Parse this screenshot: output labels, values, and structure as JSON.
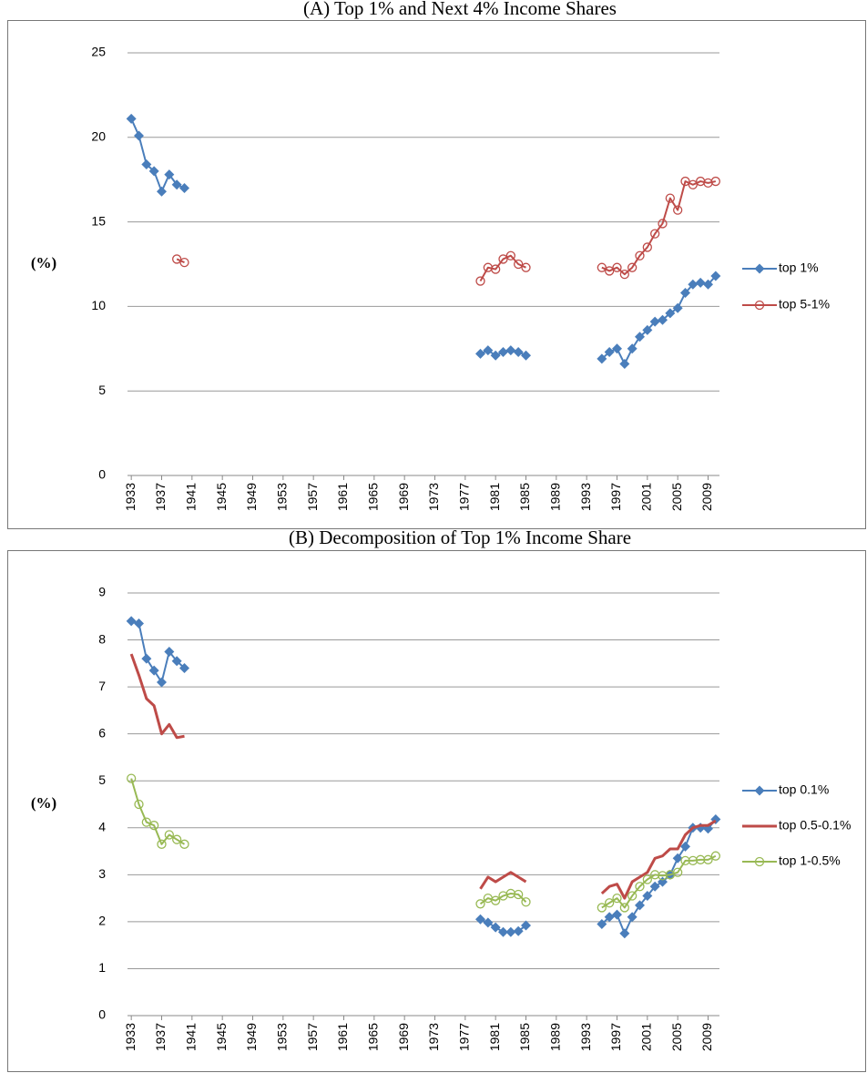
{
  "chart_data": [
    {
      "type": "line",
      "title": "(A) Top 1% and Next 4% Income Shares",
      "y_label": "(%)",
      "x": [
        1933,
        1934,
        1935,
        1936,
        1937,
        1938,
        1939,
        1940,
        1941,
        1942,
        1943,
        1944,
        1945,
        1946,
        1947,
        1948,
        1949,
        1950,
        1951,
        1952,
        1953,
        1954,
        1955,
        1956,
        1957,
        1958,
        1959,
        1960,
        1961,
        1962,
        1963,
        1964,
        1965,
        1966,
        1967,
        1968,
        1969,
        1970,
        1971,
        1972,
        1973,
        1974,
        1975,
        1976,
        1977,
        1978,
        1979,
        1980,
        1981,
        1982,
        1983,
        1984,
        1985,
        1986,
        1987,
        1988,
        1989,
        1990,
        1991,
        1992,
        1993,
        1994,
        1995,
        1996,
        1997,
        1998,
        1999,
        2000,
        2001,
        2002,
        2003,
        2004,
        2005,
        2006,
        2007,
        2008,
        2009,
        2010
      ],
      "xlim": [
        1932.5,
        2010.5
      ],
      "xticks": [
        1933,
        1937,
        1941,
        1945,
        1949,
        1953,
        1957,
        1961,
        1965,
        1969,
        1973,
        1977,
        1981,
        1985,
        1989,
        1993,
        1997,
        2001,
        2005,
        2009
      ],
      "ylim": [
        0,
        25
      ],
      "yticks": [
        0,
        5,
        10,
        15,
        20,
        25
      ],
      "grid": true,
      "legend": "right",
      "series": [
        {
          "name": "top 1%",
          "color": "#4a7ebb",
          "marker": "diamond",
          "values": [
            21.1,
            20.1,
            18.4,
            18.0,
            16.8,
            17.8,
            17.2,
            17.0,
            null,
            null,
            null,
            null,
            null,
            null,
            null,
            null,
            null,
            null,
            null,
            null,
            null,
            null,
            null,
            null,
            null,
            null,
            null,
            null,
            null,
            null,
            null,
            null,
            null,
            null,
            null,
            null,
            null,
            null,
            null,
            null,
            null,
            null,
            null,
            null,
            null,
            null,
            7.2,
            7.4,
            7.1,
            7.3,
            7.4,
            7.3,
            7.1,
            null,
            null,
            null,
            null,
            null,
            null,
            null,
            null,
            null,
            6.9,
            7.3,
            7.5,
            6.6,
            7.5,
            8.2,
            8.6,
            9.1,
            9.2,
            9.6,
            9.9,
            10.8,
            11.3,
            11.4,
            11.3,
            11.8
          ]
        },
        {
          "name": "top 5-1%",
          "color": "#be4b48",
          "marker": "circle-open",
          "values": [
            null,
            null,
            null,
            null,
            null,
            null,
            12.8,
            12.6,
            null,
            null,
            null,
            null,
            null,
            null,
            null,
            null,
            null,
            null,
            null,
            null,
            null,
            null,
            null,
            null,
            null,
            null,
            null,
            null,
            null,
            null,
            null,
            null,
            null,
            null,
            null,
            null,
            null,
            null,
            null,
            null,
            null,
            null,
            null,
            null,
            null,
            null,
            11.5,
            12.3,
            12.2,
            12.8,
            13.0,
            12.5,
            12.3,
            null,
            null,
            null,
            null,
            null,
            null,
            null,
            null,
            null,
            12.3,
            12.1,
            12.3,
            11.9,
            12.3,
            13.0,
            13.5,
            14.3,
            14.9,
            16.4,
            15.7,
            17.4,
            17.2,
            17.4,
            17.3,
            17.4
          ]
        }
      ]
    },
    {
      "type": "line",
      "title": "(B) Decomposition of Top 1% Income Share",
      "y_label": "(%)",
      "x": [
        1933,
        1934,
        1935,
        1936,
        1937,
        1938,
        1939,
        1940,
        1941,
        1942,
        1943,
        1944,
        1945,
        1946,
        1947,
        1948,
        1949,
        1950,
        1951,
        1952,
        1953,
        1954,
        1955,
        1956,
        1957,
        1958,
        1959,
        1960,
        1961,
        1962,
        1963,
        1964,
        1965,
        1966,
        1967,
        1968,
        1969,
        1970,
        1971,
        1972,
        1973,
        1974,
        1975,
        1976,
        1977,
        1978,
        1979,
        1980,
        1981,
        1982,
        1983,
        1984,
        1985,
        1986,
        1987,
        1988,
        1989,
        1990,
        1991,
        1992,
        1993,
        1994,
        1995,
        1996,
        1997,
        1998,
        1999,
        2000,
        2001,
        2002,
        2003,
        2004,
        2005,
        2006,
        2007,
        2008,
        2009,
        2010
      ],
      "xlim": [
        1932.5,
        2010.5
      ],
      "xticks": [
        1933,
        1937,
        1941,
        1945,
        1949,
        1953,
        1957,
        1961,
        1965,
        1969,
        1973,
        1977,
        1981,
        1985,
        1989,
        1993,
        1997,
        2001,
        2005,
        2009
      ],
      "ylim": [
        0,
        9
      ],
      "yticks": [
        0,
        1,
        2,
        3,
        4,
        5,
        6,
        7,
        8,
        9
      ],
      "grid": true,
      "legend": "right",
      "series": [
        {
          "name": "top 0.1%",
          "color": "#4a7ebb",
          "marker": "diamond",
          "values": [
            8.4,
            8.35,
            7.6,
            7.35,
            7.1,
            7.75,
            7.55,
            7.4,
            null,
            null,
            null,
            null,
            null,
            null,
            null,
            null,
            null,
            null,
            null,
            null,
            null,
            null,
            null,
            null,
            null,
            null,
            null,
            null,
            null,
            null,
            null,
            null,
            null,
            null,
            null,
            null,
            null,
            null,
            null,
            null,
            null,
            null,
            null,
            null,
            null,
            null,
            2.05,
            1.98,
            1.88,
            1.78,
            1.78,
            1.8,
            1.92,
            null,
            null,
            null,
            null,
            null,
            null,
            null,
            null,
            null,
            1.95,
            2.1,
            2.15,
            1.75,
            2.1,
            2.35,
            2.55,
            2.75,
            2.85,
            3.0,
            3.35,
            3.6,
            4.0,
            4.0,
            3.98,
            4.18
          ]
        },
        {
          "name": "top 0.5-0.1%",
          "color": "#be4b48",
          "marker": "none",
          "values": [
            7.7,
            7.25,
            6.75,
            6.6,
            6.0,
            6.2,
            5.92,
            5.95,
            null,
            null,
            null,
            null,
            null,
            null,
            null,
            null,
            null,
            null,
            null,
            null,
            null,
            null,
            null,
            null,
            null,
            null,
            null,
            null,
            null,
            null,
            null,
            null,
            null,
            null,
            null,
            null,
            null,
            null,
            null,
            null,
            null,
            null,
            null,
            null,
            null,
            null,
            2.7,
            2.95,
            2.85,
            2.95,
            3.05,
            2.95,
            2.85,
            null,
            null,
            null,
            null,
            null,
            null,
            null,
            null,
            null,
            2.6,
            2.75,
            2.8,
            2.5,
            2.85,
            2.95,
            3.05,
            3.35,
            3.4,
            3.55,
            3.55,
            3.85,
            4.0,
            4.05,
            4.05,
            4.15
          ]
        },
        {
          "name": "top 1-0.5%",
          "color": "#98b954",
          "marker": "circle-open",
          "values": [
            5.05,
            4.5,
            4.12,
            4.05,
            3.65,
            3.85,
            3.75,
            3.65,
            null,
            null,
            null,
            null,
            null,
            null,
            null,
            null,
            null,
            null,
            null,
            null,
            null,
            null,
            null,
            null,
            null,
            null,
            null,
            null,
            null,
            null,
            null,
            null,
            null,
            null,
            null,
            null,
            null,
            null,
            null,
            null,
            null,
            null,
            null,
            null,
            null,
            null,
            2.38,
            2.5,
            2.45,
            2.55,
            2.6,
            2.58,
            2.42,
            null,
            null,
            null,
            null,
            null,
            null,
            null,
            null,
            null,
            2.3,
            2.4,
            2.5,
            2.3,
            2.55,
            2.75,
            2.9,
            3.0,
            2.98,
            3.0,
            3.05,
            3.3,
            3.3,
            3.32,
            3.32,
            3.4
          ]
        }
      ]
    }
  ]
}
